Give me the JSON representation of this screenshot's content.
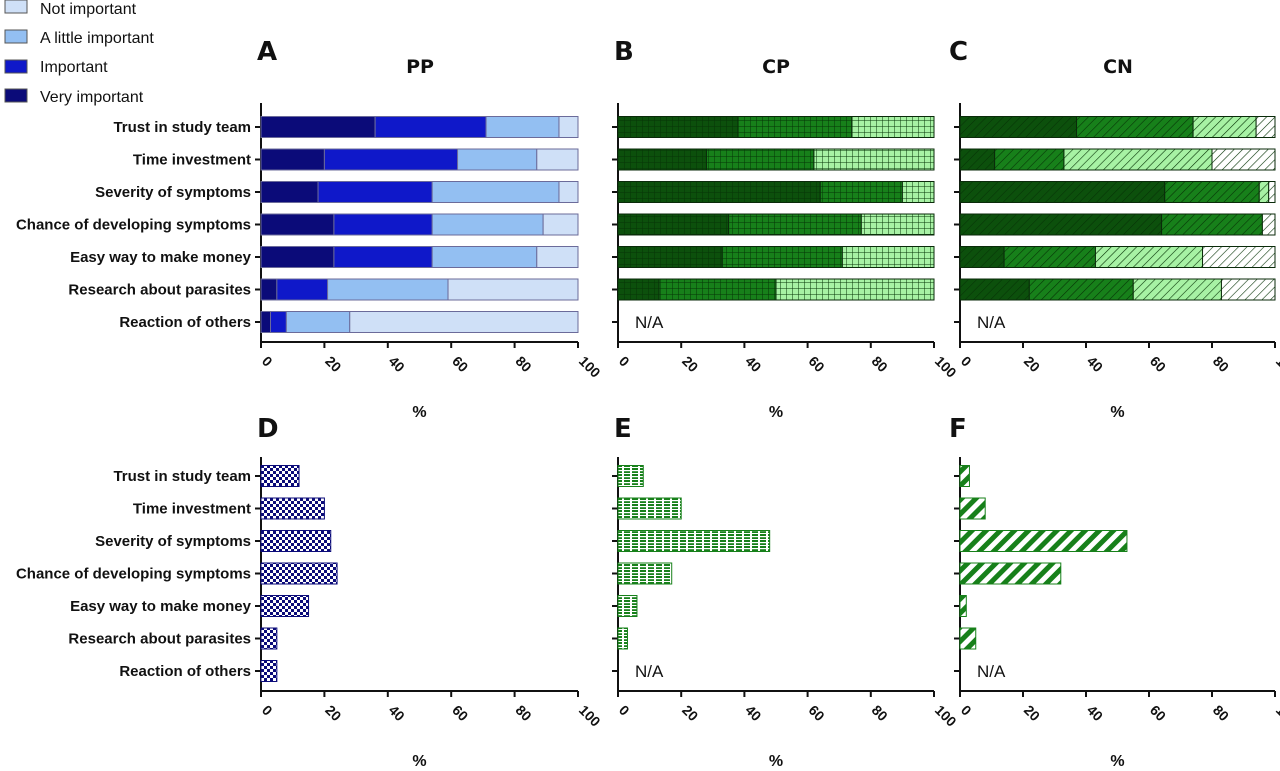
{
  "legend": [
    {
      "label": "Not important",
      "color": "#cfe0f7"
    },
    {
      "label": "A little important",
      "color": "#93bff2"
    },
    {
      "label": "Important",
      "color": "#0f18c9"
    },
    {
      "label": "Very important",
      "color": "#0b0b79"
    }
  ],
  "categories": [
    "Trust in study team",
    "Time investment",
    "Severity of symptoms",
    "Chance of developing symptoms",
    "Easy way to make money",
    "Research about parasites",
    "Reaction of others"
  ],
  "na_text": "N/A",
  "axis_unit": "%",
  "x_ticks": [
    "0",
    "20",
    "40",
    "60",
    "80",
    "100"
  ],
  "chart_data": [
    {
      "panel": "A",
      "title": "PP",
      "type": "bar",
      "stacked": true,
      "orientation": "horizontal",
      "xlabel": "%",
      "xlim": [
        0,
        100
      ],
      "pattern": "solid",
      "colors": [
        "#0b0b79",
        "#0f18c9",
        "#93bff2",
        "#cfe0f7"
      ],
      "series": [
        {
          "name": "Very important",
          "values": [
            36,
            20,
            18,
            23,
            23,
            5,
            3
          ]
        },
        {
          "name": "Important",
          "values": [
            35,
            42,
            36,
            31,
            31,
            16,
            5
          ]
        },
        {
          "name": "A little important",
          "values": [
            23,
            25,
            40,
            35,
            33,
            38,
            20
          ]
        },
        {
          "name": "Not important",
          "values": [
            6,
            13,
            6,
            11,
            13,
            41,
            72
          ]
        }
      ]
    },
    {
      "panel": "B",
      "title": "CP",
      "type": "bar",
      "stacked": true,
      "orientation": "horizontal",
      "xlabel": "%",
      "xlim": [
        0,
        100
      ],
      "pattern": "grid",
      "na_rows": [
        6
      ],
      "colors": [
        "#0c500c",
        "#17801a",
        "#a7f2a4",
        "#ffffff"
      ],
      "series": [
        {
          "name": "Very important",
          "values": [
            38,
            28,
            64,
            35,
            33,
            13,
            null
          ]
        },
        {
          "name": "Important",
          "values": [
            36,
            34,
            26,
            42,
            38,
            37,
            null
          ]
        },
        {
          "name": "A little important",
          "values": [
            26,
            38,
            10,
            23,
            29,
            50,
            null
          ]
        },
        {
          "name": "Not important",
          "values": [
            0,
            0,
            0,
            0,
            0,
            0,
            null
          ]
        }
      ]
    },
    {
      "panel": "C",
      "title": "CN",
      "type": "bar",
      "stacked": true,
      "orientation": "horizontal",
      "xlabel": "%",
      "xlim": [
        0,
        100
      ],
      "pattern": "hatch",
      "na_rows": [
        6
      ],
      "colors": [
        "#0c500c",
        "#17801a",
        "#a7f2a4",
        "#ffffff"
      ],
      "series": [
        {
          "name": "Very important",
          "values": [
            37,
            11,
            65,
            64,
            14,
            22,
            null
          ]
        },
        {
          "name": "Important",
          "values": [
            37,
            22,
            30,
            32,
            29,
            33,
            null
          ]
        },
        {
          "name": "A little important",
          "values": [
            20,
            47,
            3,
            0,
            34,
            28,
            null
          ]
        },
        {
          "name": "Not important",
          "values": [
            6,
            20,
            2,
            4,
            23,
            17,
            null
          ]
        }
      ]
    },
    {
      "panel": "D",
      "type": "bar",
      "orientation": "horizontal",
      "xlabel": "%",
      "xlim": [
        0,
        100
      ],
      "pattern": "checker",
      "colors": [
        "#0b0b79",
        "#ffffff"
      ],
      "values": [
        12,
        20,
        22,
        24,
        15,
        5,
        5
      ]
    },
    {
      "panel": "E",
      "type": "bar",
      "orientation": "horizontal",
      "xlabel": "%",
      "xlim": [
        0,
        100
      ],
      "pattern": "brick",
      "na_rows": [
        6
      ],
      "colors": [
        "#17801a",
        "#ffffff"
      ],
      "values": [
        8,
        20,
        48,
        17,
        6,
        3,
        null
      ]
    },
    {
      "panel": "F",
      "type": "bar",
      "orientation": "horizontal",
      "xlabel": "%",
      "xlim": [
        0,
        100
      ],
      "pattern": "diagonal",
      "na_rows": [
        6
      ],
      "colors": [
        "#17801a",
        "#ffffff"
      ],
      "values": [
        3,
        8,
        53,
        32,
        2,
        5,
        null
      ]
    }
  ]
}
